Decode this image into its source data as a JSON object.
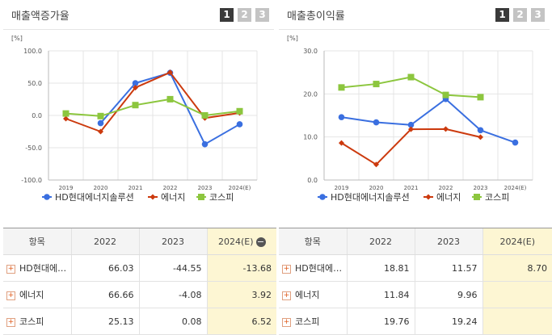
{
  "panels": [
    {
      "title": "매출액증가율",
      "pages": [
        "1",
        "2",
        "3"
      ],
      "active_page": "1",
      "table": {
        "headers": [
          "항목",
          "2022",
          "2023",
          "2024(E)"
        ],
        "rows": [
          {
            "name": "HD현대에…",
            "values": [
              "66.03",
              "-44.55",
              "-13.68"
            ]
          },
          {
            "name": "에너지",
            "values": [
              "66.66",
              "-4.08",
              "3.92"
            ]
          },
          {
            "name": "코스피",
            "values": [
              "25.13",
              "0.08",
              "6.52"
            ]
          }
        ]
      }
    },
    {
      "title": "매출총이익률",
      "pages": [
        "1",
        "2",
        "3"
      ],
      "active_page": "1",
      "table": {
        "headers": [
          "항목",
          "2022",
          "2023",
          "2024(E)"
        ],
        "rows": [
          {
            "name": "HD현대에…",
            "values": [
              "18.81",
              "11.57",
              "8.70"
            ]
          },
          {
            "name": "에너지",
            "values": [
              "11.84",
              "9.96",
              ""
            ]
          },
          {
            "name": "코스피",
            "values": [
              "19.76",
              "19.24",
              ""
            ]
          }
        ]
      }
    }
  ],
  "chart_data": [
    {
      "type": "line",
      "unit_label": "[%]",
      "x": [
        "2019",
        "2020",
        "2021",
        "2022",
        "2023",
        "2024(E)"
      ],
      "ylim": [
        -100,
        100
      ],
      "yticks": [
        "100.0",
        "50.0",
        "0.0",
        "-50.0",
        "-100.0"
      ],
      "ytick_values": [
        100,
        50,
        0,
        -50,
        -100
      ],
      "grid": true,
      "legend_position": "bottom",
      "series": [
        {
          "name": "HD현대에너지솔루션",
          "color": "#3a6fe0",
          "marker": "circle",
          "values": [
            null,
            -12,
            50,
            66.03,
            -44.55,
            -13.68
          ]
        },
        {
          "name": "에너지",
          "color": "#cc3a0e",
          "marker": "diamond",
          "values": [
            -5,
            -25,
            43,
            66.66,
            -4.08,
            3.92
          ]
        },
        {
          "name": "코스피",
          "color": "#8cc63e",
          "marker": "square",
          "values": [
            3,
            -1,
            16,
            25.13,
            0.08,
            6.52
          ]
        }
      ]
    },
    {
      "type": "line",
      "unit_label": "[%]",
      "x": [
        "2019",
        "2020",
        "2021",
        "2022",
        "2023",
        "2024(E)"
      ],
      "ylim": [
        0,
        30
      ],
      "yticks": [
        "30.0",
        "20.0",
        "10.0",
        "0.0"
      ],
      "ytick_values": [
        30,
        20,
        10,
        0
      ],
      "grid": true,
      "legend_position": "bottom",
      "series": [
        {
          "name": "HD현대에너지솔루션",
          "color": "#3a6fe0",
          "marker": "circle",
          "values": [
            14.6,
            13.4,
            12.8,
            18.81,
            11.57,
            8.7
          ]
        },
        {
          "name": "에너지",
          "color": "#cc3a0e",
          "marker": "diamond",
          "values": [
            8.6,
            3.6,
            11.8,
            11.84,
            9.96,
            null
          ]
        },
        {
          "name": "코스피",
          "color": "#8cc63e",
          "marker": "square",
          "values": [
            21.5,
            22.3,
            23.9,
            19.76,
            19.24,
            null
          ]
        }
      ]
    }
  ]
}
